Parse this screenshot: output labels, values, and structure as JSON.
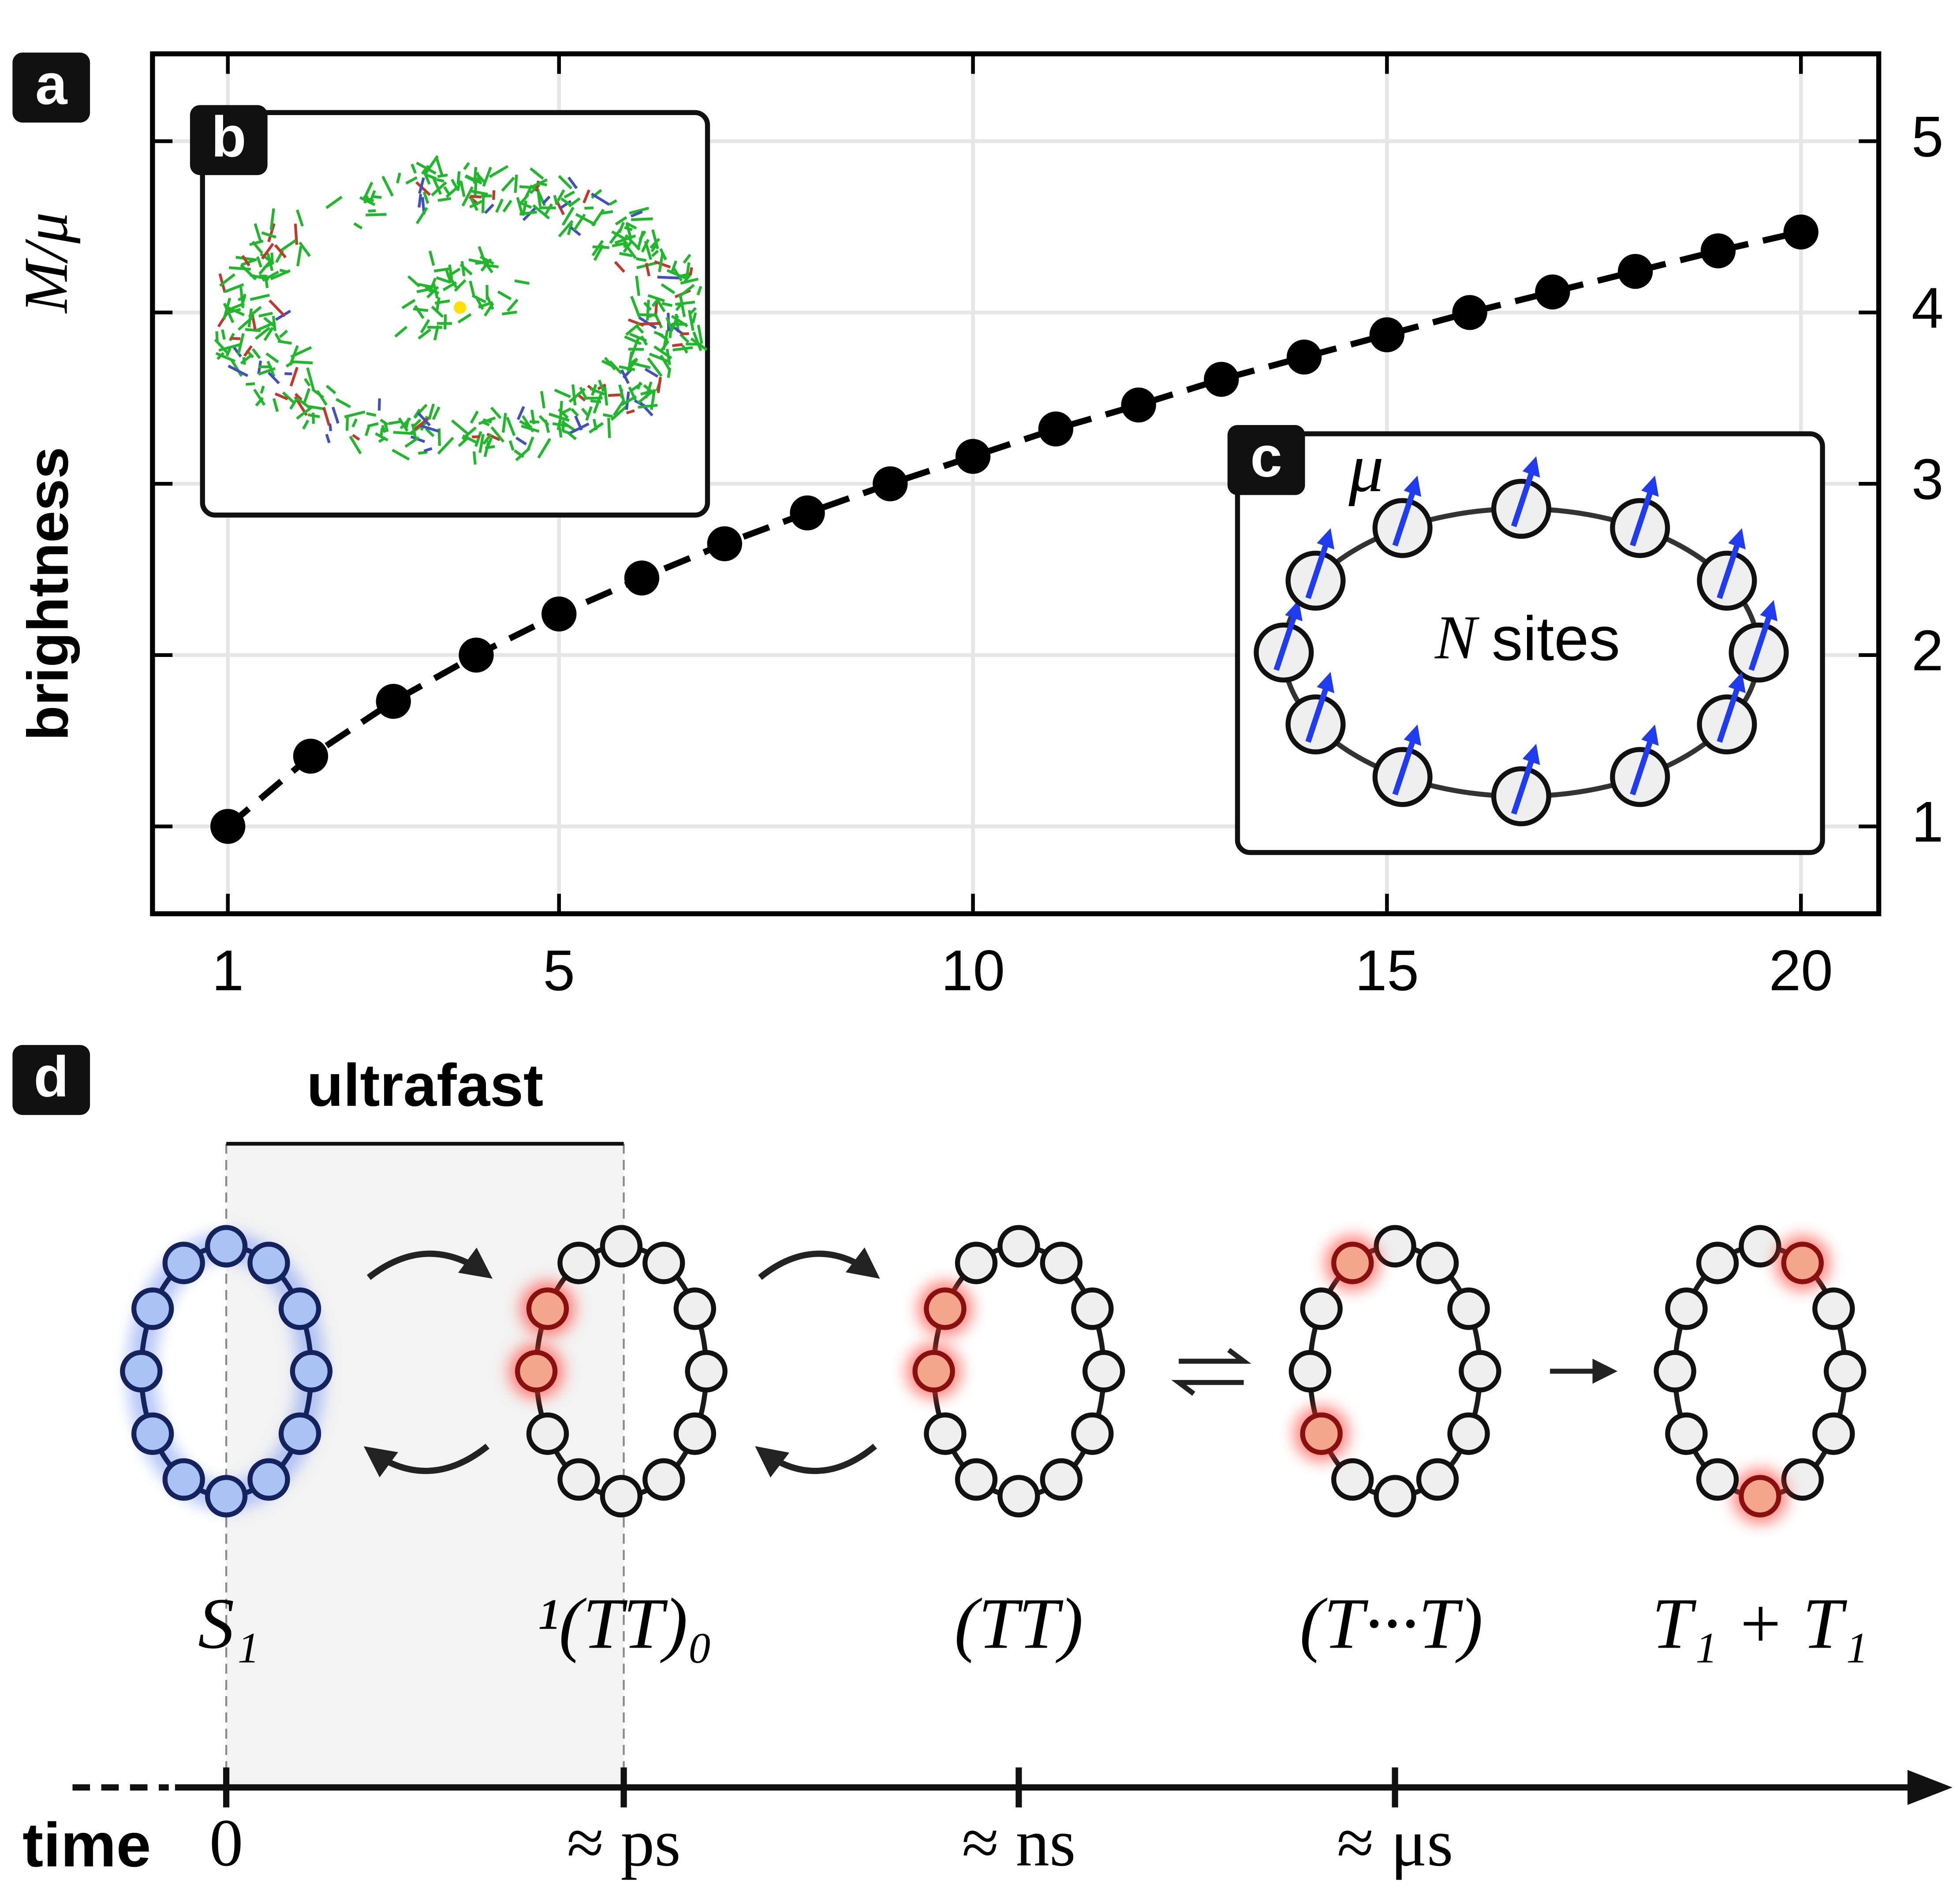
{
  "chart_data": {
    "type": "line",
    "panel_label": "a",
    "x": [
      1,
      2,
      3,
      4,
      5,
      6,
      7,
      8,
      9,
      10,
      11,
      12,
      13,
      14,
      15,
      16,
      17,
      18,
      19,
      20
    ],
    "values": [
      1.0,
      1.41,
      1.73,
      2.0,
      2.24,
      2.45,
      2.65,
      2.83,
      3.0,
      3.16,
      3.32,
      3.46,
      3.61,
      3.74,
      3.87,
      4.0,
      4.12,
      4.24,
      4.36,
      4.47
    ],
    "color": "#000000",
    "line_style": "dashed",
    "xlim": [
      0.09,
      20.94
    ],
    "ylim": [
      0.49,
      5.51
    ],
    "xticks": [
      1,
      5,
      10,
      15,
      20
    ],
    "yticks": [
      1,
      2,
      3,
      4,
      5
    ],
    "ylabel": "brightness",
    "ylabel_math": "M/μ",
    "grid": true
  },
  "insets": {
    "b": {
      "panel_label": "b"
    },
    "c": {
      "panel_label": "c",
      "symbol": "μ",
      "label_symbol": "N",
      "label": "sites"
    }
  },
  "timeline": {
    "panel_label": "d",
    "bracket_label": "ultrafast",
    "axis_label": "time",
    "states": [
      "S₁",
      "¹(TT)₀",
      "(TT)",
      "(T···T)",
      "T₁ + T₁"
    ],
    "ticks": [
      "0",
      "≈ ps",
      "≈ ns",
      "≈ μs"
    ]
  }
}
